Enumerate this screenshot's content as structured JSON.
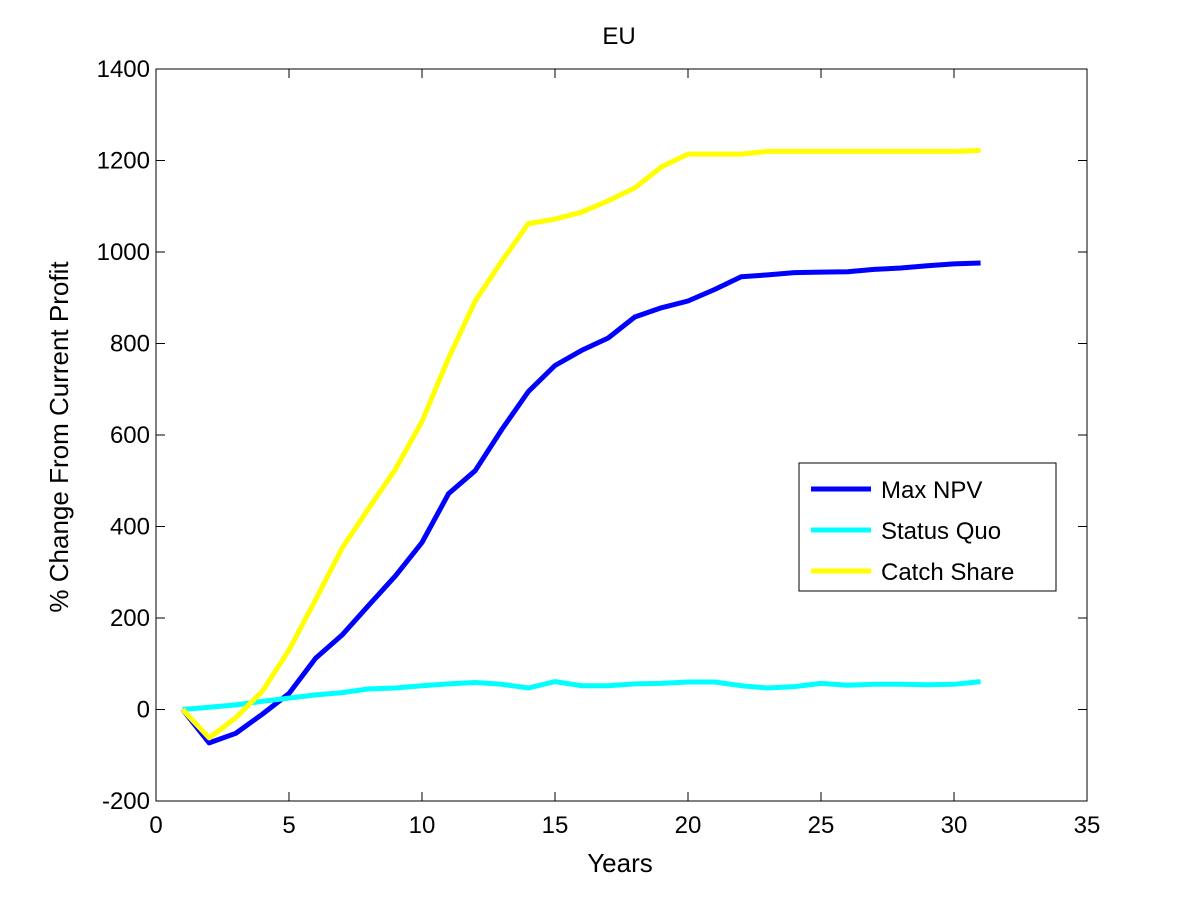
{
  "chart_data": {
    "type": "line",
    "title": "EU",
    "xlabel": "Years",
    "ylabel": "% Change From Current Profit",
    "xlim": [
      0,
      35
    ],
    "ylim": [
      -200,
      1400
    ],
    "xticks": [
      0,
      5,
      10,
      15,
      20,
      25,
      30,
      35
    ],
    "yticks": [
      -200,
      0,
      200,
      400,
      600,
      800,
      1000,
      1200,
      1400
    ],
    "grid": false,
    "legend_position": "center-right",
    "x": [
      1,
      2,
      3,
      4,
      5,
      6,
      7,
      8,
      9,
      10,
      11,
      12,
      13,
      14,
      15,
      16,
      17,
      18,
      19,
      20,
      21,
      22,
      23,
      24,
      25,
      26,
      27,
      28,
      29,
      30,
      31
    ],
    "series": [
      {
        "name": "Max NPV",
        "color": "#0000ff",
        "values": [
          0,
          -73,
          -52,
          -10,
          35,
          112,
          163,
          228,
          292,
          365,
          472,
          522,
          612,
          695,
          752,
          785,
          812,
          858,
          878,
          893,
          918,
          946,
          950,
          955,
          956,
          957,
          962,
          965,
          970,
          974,
          976
        ]
      },
      {
        "name": "Status Quo",
        "color": "#00ffff",
        "values": [
          0,
          5,
          10,
          18,
          25,
          32,
          37,
          45,
          47,
          52,
          56,
          59,
          55,
          47,
          61,
          52,
          52,
          56,
          57,
          60,
          60,
          52,
          47,
          50,
          57,
          53,
          55,
          55,
          54,
          55,
          61
        ]
      },
      {
        "name": "Catch Share",
        "color": "#ffff00",
        "values": [
          0,
          -62,
          -18,
          40,
          130,
          240,
          353,
          440,
          525,
          630,
          768,
          893,
          980,
          1062,
          1072,
          1087,
          1112,
          1140,
          1186,
          1214,
          1214,
          1214,
          1220,
          1220,
          1220,
          1220,
          1220,
          1220,
          1220,
          1220,
          1222
        ]
      }
    ]
  }
}
